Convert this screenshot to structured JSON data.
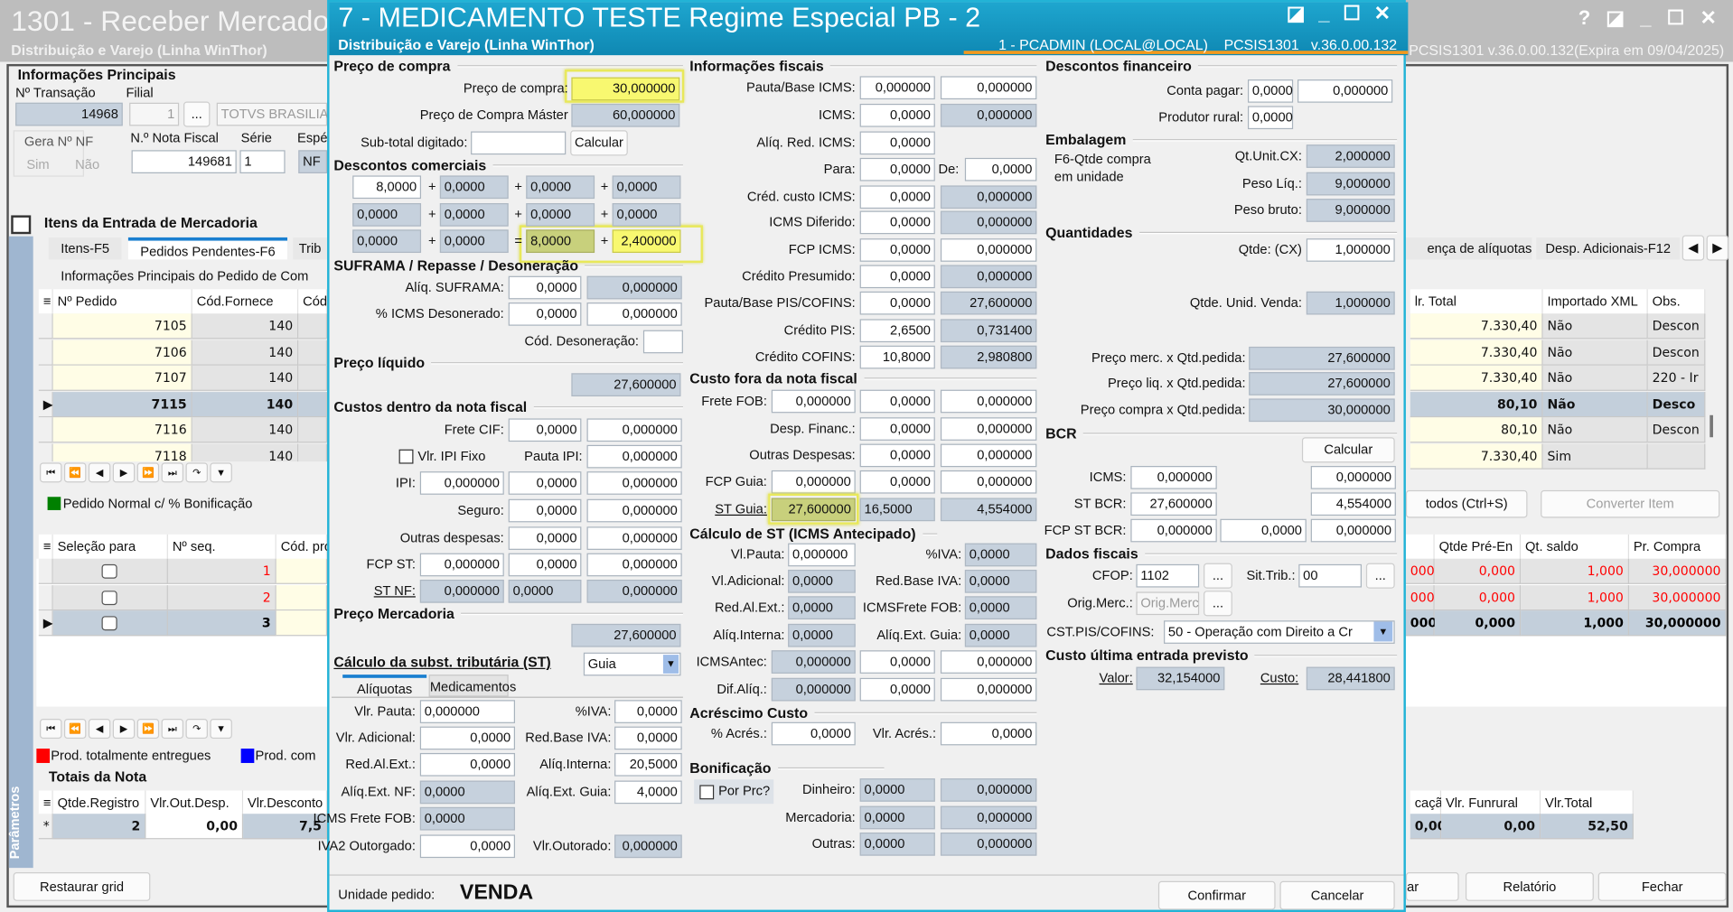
{
  "colors": {
    "dialog_title": "#1597c0",
    "accent_orange": "#f39a1e",
    "readonly_field": "#c6d1dd",
    "highlight": "#f8f870",
    "grid_yellow": "#fffde6",
    "selected_row": "#c3cfdb",
    "legend_green": "#008000",
    "legend_red": "#ff0000",
    "legend_blue": "#0000ff"
  },
  "main_window": {
    "title": "1301 - Receber Mercado",
    "subtitle": "Distribuição e Varejo (Linha WinThor)",
    "version": "PCSIS1301  v.36.0.00.132(Expira em 09/04/2025)",
    "controls": [
      "help-icon",
      "restore-icon",
      "minimize-icon",
      "maximize-icon",
      "close-icon"
    ],
    "info": {
      "heading": "Informações Principais",
      "transacao_label": "Nº Transação",
      "filial_label": "Filial",
      "transacao": "14968",
      "filial": "1",
      "filial_btn": "...",
      "filial_nome": "TOTVS BRASILIA",
      "gera_nf_label": "Gera Nº NF",
      "sim": "Sim",
      "nao": "Não",
      "nota_label": "N.º Nota Fiscal",
      "serie_label": "Série",
      "especie_label": "Espé",
      "nota": "149681",
      "serie": "1",
      "especie": "NF"
    },
    "itens": {
      "heading": "Itens da Entrada de Mercadoria",
      "tabs": [
        "Itens-F5",
        "Pedidos Pendentes-F6",
        "Trib"
      ],
      "right_tabs": [
        "ença de alíquotas",
        "Desp. Adicionais-F12"
      ],
      "subheading": "Informações Principais do Pedido de Com"
    },
    "pedidos_grid": {
      "columns": [
        "Nº Pedido",
        "Cód.Fornece",
        "Cód.Fornec"
      ],
      "right_columns": [
        "lr. Total",
        "Importado XML",
        "Obs."
      ],
      "selected_index": 3,
      "rows": [
        {
          "pedido": "7105",
          "fornec": "140",
          "total": "7.330,40",
          "xml": "Não",
          "obs": "Descon"
        },
        {
          "pedido": "7106",
          "fornec": "140",
          "total": "7.330,40",
          "xml": "Não",
          "obs": "Descon"
        },
        {
          "pedido": "7107",
          "fornec": "140",
          "total": "7.330,40",
          "xml": "Não",
          "obs": "220 - Ir"
        },
        {
          "pedido": "7115",
          "fornec": "140",
          "total": "80,10",
          "xml": "Não",
          "obs": "Desco"
        },
        {
          "pedido": "7116",
          "fornec": "140",
          "total": "80,10",
          "xml": "Não",
          "obs": "Descon"
        },
        {
          "pedido": "7118",
          "fornec": "140",
          "total": "7.330,40",
          "xml": "Sim",
          "obs": ""
        }
      ]
    },
    "legend_normal": "Pedido Normal c/ % Bonificação",
    "btn_todos": "todos (Ctrl+S)",
    "btn_converter": "Converter Item",
    "produtos_grid": {
      "columns": [
        "Seleção para",
        "Nº seq.",
        "Cód. produto"
      ],
      "right_columns": [
        "",
        "Qtde Pré-En",
        "Qt. saldo",
        "Pr. Compra"
      ],
      "selected_index": 2,
      "rows": [
        {
          "seq": "1",
          "c0": "000",
          "pre": "0,000",
          "saldo": "1,000",
          "preco": "30,000000"
        },
        {
          "seq": "2",
          "c0": "000",
          "pre": "0,000",
          "saldo": "1,000",
          "preco": "30,000000"
        },
        {
          "seq": "3",
          "c0": "000",
          "pre": "0,000",
          "saldo": "1,000",
          "preco": "30,000000"
        }
      ]
    },
    "legend_entregues": "Prod. totalmente entregues",
    "legend_com": "Prod. com",
    "totais": {
      "heading": "Totais da Nota",
      "columns": [
        "Qtde.Registro",
        "Vlr.Out.Desp.",
        "Vlr.Desconto"
      ],
      "right_columns": [
        "caçã",
        "Vlr. Funrural",
        "Vlr.Total"
      ],
      "row": {
        "marker": "*",
        "qtde": "2",
        "out": "0,00",
        "desc": "7,5",
        "c0": "0,00",
        "funrural": "0,00",
        "total": "52,50"
      }
    },
    "parametros": "Parâmetros",
    "buttons": {
      "restaurar": "Restaurar grid",
      "partial": "ar",
      "relatorio": "Relatório",
      "fechar": "Fechar"
    }
  },
  "dlg": {
    "title": "7 - MEDICAMENTO TESTE Regime Especial PB - 2",
    "subtitle": "Distribuição e Varejo (Linha WinThor)",
    "session": "1 - PCADMIN (LOCAL@LOCAL)    PCSIS1301   v.36.0.00.132",
    "pc": {
      "h": "Preço de compra",
      "l1": "Preço de compra:",
      "v1": "30,000000",
      "l2": "Preço de Compra Máster",
      "v2": "60,000000",
      "l3": "Sub-total digitado:",
      "v3": "",
      "calc": "Calcular"
    },
    "dc": {
      "h": "Descontos comerciais",
      "rows": [
        [
          "8,0000",
          "0,0000",
          "0,0000",
          "0,0000"
        ],
        [
          "0,0000",
          "0,0000",
          "0,0000",
          "0,0000"
        ],
        [
          "0,0000",
          "0,0000",
          "8,0000",
          "2,400000"
        ]
      ],
      "plus": "+",
      "eq": "="
    },
    "sf": {
      "h": "SUFRAMA / Repasse / Desoneração",
      "l1": "Alíq. SUFRAMA:",
      "v1a": "0,0000",
      "v1b": "0,000000",
      "l2": "% ICMS Desonerado:",
      "v2a": "0,0000",
      "v2b": "0,000000",
      "l3": "Cód. Desoneração:",
      "v3": ""
    },
    "pl": {
      "h": "Preço líquido",
      "v": "27,600000"
    },
    "cd": {
      "h": "Custos dentro da nota fiscal",
      "frete_l": "Frete CIF:",
      "frete": [
        "0,0000",
        "0,000000"
      ],
      "ipifixo_l": "Vlr. IPI Fixo",
      "pauta_l": "Pauta IPI:",
      "pauta": "0,000000",
      "ipi_l": "IPI:",
      "ipi": [
        "0,000000",
        "0,0000",
        "0,000000"
      ],
      "seguro_l": "Seguro:",
      "seguro": [
        "0,0000",
        "0,000000"
      ],
      "outras_l": "Outras despesas:",
      "outras": [
        "0,0000",
        "0,000000"
      ],
      "fcp_l": "FCP ST:",
      "fcp": [
        "0,000000",
        "0,0000",
        "0,000000"
      ],
      "stnf_l": "ST NF:",
      "stnf": [
        "0,000000",
        "0,0000",
        "0,000000"
      ]
    },
    "pm": {
      "h": "Preço Mercadoria",
      "v": "27,600000"
    },
    "st": {
      "h": "Cálculo da subst. tributária (ST)",
      "mode": "Guia",
      "tabs": [
        "Alíquotas",
        "Medicamentos"
      ],
      "left": [
        {
          "l": "Vlr. Pauta:",
          "v": "0,000000"
        },
        {
          "l": "Vlr. Adicional:",
          "v": "0,0000"
        },
        {
          "l": "Red.Al.Ext.:",
          "v": "0,0000"
        },
        {
          "l": "Alíq.Ext. NF:",
          "v": "0,0000"
        },
        {
          "l": "ICMS Frete FOB:",
          "v": "0,0000"
        },
        {
          "l": "IVA2 Outorgado:",
          "v": "0,0000"
        }
      ],
      "right": [
        {
          "l": "%IVA:",
          "v": "0,0000"
        },
        {
          "l": "Red.Base IVA:",
          "v": "0,0000"
        },
        {
          "l": "Alíq.Interna:",
          "v": "20,5000"
        },
        {
          "l": "Alíq.Ext. Guia:",
          "v": "4,0000"
        },
        {
          "l": "Vlr.Outorado:",
          "v": "0,000000"
        }
      ]
    },
    "inf": {
      "h": "Informações fiscais",
      "de_l": "De:",
      "de_v": "0,0000",
      "rows": [
        {
          "l": "Pauta/Base ICMS:",
          "v": [
            "0,000000",
            "0,000000"
          ]
        },
        {
          "l": "ICMS:",
          "v": [
            "0,0000",
            "0,000000"
          ]
        },
        {
          "l": "Alíq. Red. ICMS:",
          "v": [
            "0,0000"
          ]
        },
        {
          "l": "Para:",
          "v": [
            "0,0000"
          ]
        },
        {
          "l": "Créd. custo ICMS:",
          "v": [
            "0,0000",
            "0,000000"
          ]
        },
        {
          "l": "ICMS Diferido:",
          "v": [
            "0,0000",
            "0,000000"
          ]
        },
        {
          "l": "FCP ICMS:",
          "v": [
            "0,0000",
            "0,000000"
          ]
        },
        {
          "l": "Crédito Presumido:",
          "v": [
            "0,0000",
            "0,000000"
          ]
        },
        {
          "l": "Pauta/Base PIS/COFINS:",
          "v": [
            "0,0000",
            "27,600000"
          ]
        },
        {
          "l": "Crédito PIS:",
          "v": [
            "2,6500",
            "0,731400"
          ]
        },
        {
          "l": "Crédito COFINS:",
          "v": [
            "10,8000",
            "2,980800"
          ]
        }
      ]
    },
    "cf": {
      "h": "Custo fora da nota fiscal",
      "frete_l": "Frete FOB:",
      "frete": [
        "0,000000",
        "0,0000",
        "0,000000"
      ],
      "desp_l": "Desp. Financ.:",
      "desp": [
        "0,0000",
        "0,000000"
      ],
      "outras_l": "Outras Despesas:",
      "outras": [
        "0,0000",
        "0,000000"
      ],
      "fcpg_l": "FCP Guia:",
      "fcpg": [
        "0,000000",
        "0,0000",
        "0,000000"
      ],
      "stg_l": "ST Guia:",
      "stg": [
        "27,600000",
        "16,5000",
        "4,554000"
      ]
    },
    "sa": {
      "h": "Cálculo de ST (ICMS Antecipado)",
      "rows": [
        {
          "l": "Vl.Pauta:",
          "v": "0,000000",
          "l2": "%IVA:",
          "v2": "0,0000"
        },
        {
          "l": "Vl.Adicional:",
          "v": "0,0000",
          "l2": "Red.Base IVA:",
          "v2": "0,0000"
        },
        {
          "l": "Red.Al.Ext.:",
          "v": "0,0000",
          "l2": "ICMSFrete FOB:",
          "v2": "0,0000"
        },
        {
          "l": "Alíq.Interna:",
          "v": "0,0000",
          "l2": "Alíq.Ext. Guia:",
          "v2": "0,0000"
        }
      ],
      "antec_l": "ICMSAntec:",
      "antec": [
        "0,000000",
        "0,0000",
        "0,000000"
      ],
      "dif_l": "Dif.Alíq.:",
      "dif": [
        "0,000000",
        "0,0000",
        "0,000000"
      ]
    },
    "ac": {
      "h": "Acréscimo Custo",
      "l1": "% Acrés.:",
      "v1": "0,0000",
      "l2": "Vlr. Acrés.:",
      "v2": "0,0000"
    },
    "bn": {
      "h": "Bonificação",
      "chk": "Por Prc?",
      "rows": [
        {
          "l": "Dinheiro:",
          "v": [
            "0,0000",
            "0,000000"
          ]
        },
        {
          "l": "Mercadoria:",
          "v": [
            "0,0000",
            "0,000000"
          ]
        },
        {
          "l": "Outras:",
          "v": [
            "0,0000",
            "0,000000"
          ]
        }
      ]
    },
    "df": {
      "h": "Descontos financeiro",
      "l1": "Conta pagar:",
      "v1": [
        "0,0000",
        "0,000000"
      ],
      "l2": "Produtor rural:",
      "v2": "0,0000"
    },
    "em": {
      "h": "Embalagem",
      "note": [
        "F6-Qtde compra",
        "em unidade"
      ],
      "rows": [
        {
          "l": "Qt.Unit.CX:",
          "v": "2,000000"
        },
        {
          "l": "Peso Líq.:",
          "v": "9,000000"
        },
        {
          "l": "Peso bruto:",
          "v": "9,000000"
        }
      ]
    },
    "qt": {
      "h": "Quantidades",
      "l1": "Qtde: (CX)",
      "v1": "1,000000",
      "l2": "Qtde. Unid. Venda:",
      "v2": "1,000000"
    },
    "tp": {
      "rows": [
        {
          "l": "Preço merc. x Qtd.pedida:",
          "v": "27,600000"
        },
        {
          "l": "Preço liq. x Qtd.pedida:",
          "v": "27,600000"
        },
        {
          "l": "Preço compra x Qtd.pedida:",
          "v": "30,000000"
        }
      ]
    },
    "bcr": {
      "h": "BCR",
      "calc": "Calcular",
      "icms_l": "ICMS:",
      "icms": [
        "0,000000",
        "0,000000"
      ],
      "st_l": "ST BCR:",
      "st": [
        "27,600000",
        "4,554000"
      ],
      "fcp_l": "FCP ST BCR:",
      "fcp": [
        "0,000000",
        "0,0000",
        "0,000000"
      ]
    },
    "fis": {
      "h": "Dados fiscais",
      "cfop_l": "CFOP:",
      "cfop": "1102",
      "sit_l": "Sit.Trib.:",
      "sit": "00",
      "orig_l": "Orig.Merc.:",
      "orig_ph": "Orig.Merc",
      "more": "...",
      "cst_l": "CST.PIS/COFINS:",
      "cst": "50 - Operação com Direito a Cr"
    },
    "cu": {
      "h": "Custo última entrada previsto",
      "valor_l": "Valor:",
      "valor": "32,154000",
      "custo_l": "Custo:",
      "custo": "28,441800"
    },
    "ft": {
      "un_l": "Unidade pedido:",
      "un": "VENDA",
      "confirmar": "Confirmar",
      "cancelar": "Cancelar"
    }
  }
}
